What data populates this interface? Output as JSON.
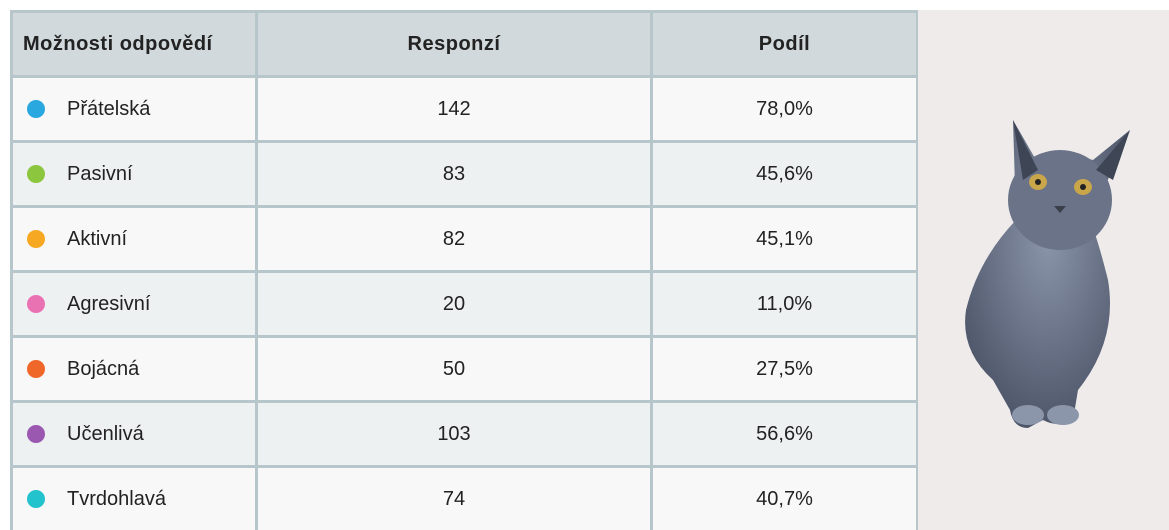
{
  "table": {
    "header": [
      "Možnosti odpovědí",
      "Responzí",
      "Podíl"
    ],
    "rows": [
      {
        "label": "Přátelská",
        "responses": "142",
        "share": "78,0%",
        "color": "#29a8e0"
      },
      {
        "label": "Pasivní",
        "responses": "83",
        "share": "45,6%",
        "color": "#8cc63f"
      },
      {
        "label": "Aktivní",
        "responses": "82",
        "share": "45,1%",
        "color": "#f7a823"
      },
      {
        "label": "Agresivní",
        "responses": "20",
        "share": "11,0%",
        "color": "#e872b2"
      },
      {
        "label": "Bojácná",
        "responses": "50",
        "share": "27,5%",
        "color": "#f0672a"
      },
      {
        "label": "Učenlivá",
        "responses": "103",
        "share": "56,6%",
        "color": "#9a58b0"
      },
      {
        "label": "Tvrdohlavá",
        "responses": "74",
        "share": "40,7%",
        "color": "#22c3cc"
      }
    ]
  }
}
